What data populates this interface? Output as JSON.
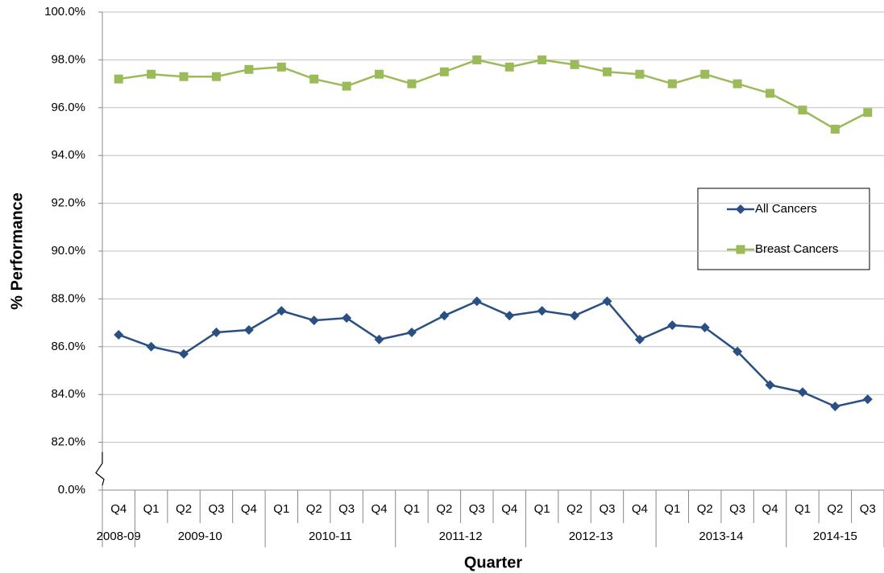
{
  "chart_data": {
    "type": "line",
    "y_label": "% Performance",
    "x_label": "Quarter",
    "categories": [
      "Q4",
      "Q1",
      "Q2",
      "Q3",
      "Q4",
      "Q1",
      "Q2",
      "Q3",
      "Q4",
      "Q1",
      "Q2",
      "Q3",
      "Q4",
      "Q1",
      "Q2",
      "Q3",
      "Q4",
      "Q1",
      "Q2",
      "Q3",
      "Q4",
      "Q1",
      "Q2",
      "Q3"
    ],
    "groups": [
      {
        "label": "2008-09",
        "span": 1
      },
      {
        "label": "2009-10",
        "span": 4
      },
      {
        "label": "2010-11",
        "span": 4
      },
      {
        "label": "2011-12",
        "span": 4
      },
      {
        "label": "2012-13",
        "span": 4
      },
      {
        "label": "2013-14",
        "span": 4
      },
      {
        "label": "2014-15",
        "span": 3
      }
    ],
    "series": [
      {
        "name": "All Cancers",
        "color": "#2a5083",
        "marker": "diamond",
        "values": [
          86.5,
          86.0,
          85.7,
          86.6,
          86.7,
          87.5,
          87.1,
          87.2,
          86.3,
          86.6,
          87.3,
          87.9,
          87.3,
          87.5,
          87.3,
          87.9,
          86.3,
          86.9,
          86.8,
          85.8,
          84.4,
          84.1,
          83.5,
          83.8
        ]
      },
      {
        "name": "Breast Cancers",
        "color": "#9bbb59",
        "marker": "square",
        "values": [
          97.2,
          97.4,
          97.3,
          97.3,
          97.6,
          97.7,
          97.2,
          96.9,
          97.4,
          97.0,
          97.5,
          98.0,
          97.7,
          98.0,
          97.8,
          97.5,
          97.4,
          97.0,
          97.4,
          97.0,
          96.6,
          95.9,
          95.1,
          95.8
        ]
      }
    ],
    "ylim": [
      0,
      100
    ],
    "yticks": [
      {
        "value": 0,
        "label": "0.0%"
      },
      {
        "value": 82,
        "label": "82.0%"
      },
      {
        "value": 84,
        "label": "84.0%"
      },
      {
        "value": 86,
        "label": "86.0%"
      },
      {
        "value": 88,
        "label": "88.0%"
      },
      {
        "value": 90,
        "label": "90.0%"
      },
      {
        "value": 92,
        "label": "92.0%"
      },
      {
        "value": 94,
        "label": "94.0%"
      },
      {
        "value": 96,
        "label": "96.0%"
      },
      {
        "value": 98,
        "label": "98.0%"
      },
      {
        "value": 100,
        "label": "100.0%"
      }
    ],
    "grid": true,
    "axis_break": true
  }
}
